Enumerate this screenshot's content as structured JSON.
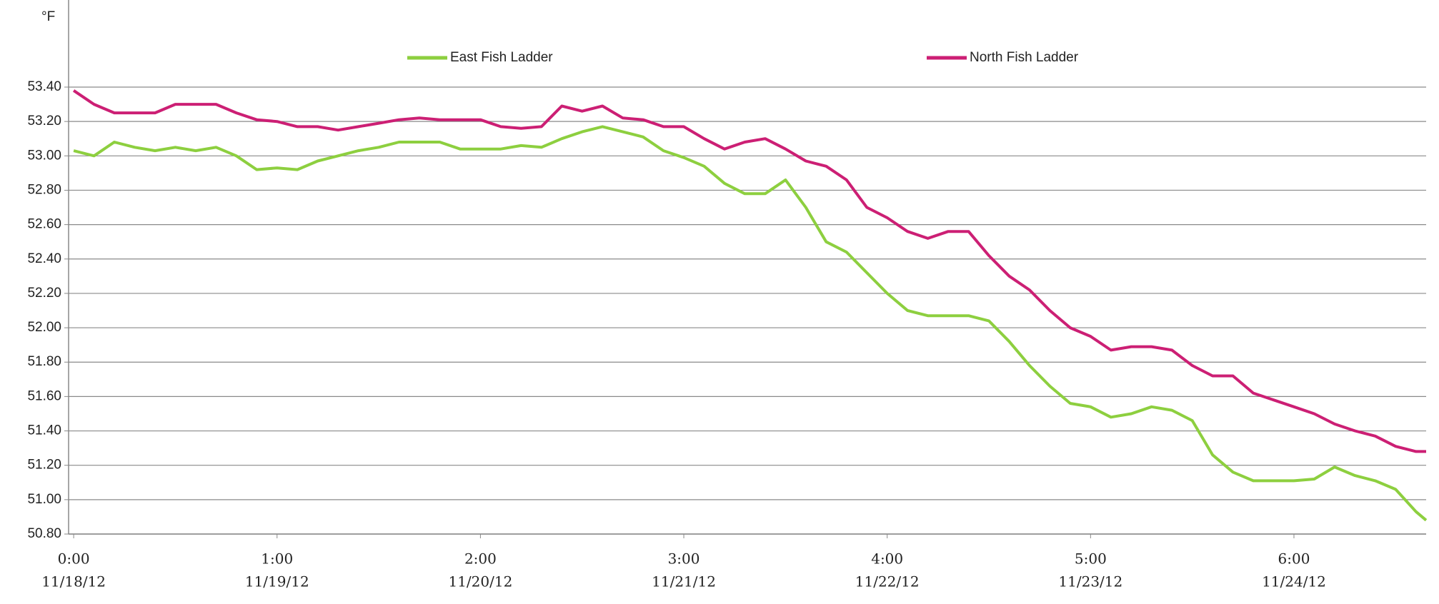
{
  "chart_data": {
    "type": "line",
    "y_unit": "°F",
    "x": [
      0,
      0.1,
      0.2,
      0.3,
      0.4,
      0.5,
      0.6,
      0.7,
      0.8,
      0.9,
      1.0,
      1.1,
      1.2,
      1.3,
      1.4,
      1.5,
      1.6,
      1.7,
      1.8,
      1.9,
      2.0,
      2.1,
      2.2,
      2.3,
      2.4,
      2.5,
      2.6,
      2.7,
      2.8,
      2.9,
      3.0,
      3.1,
      3.2,
      3.3,
      3.4,
      3.5,
      3.6,
      3.7,
      3.8,
      3.9,
      4.0,
      4.1,
      4.2,
      4.3,
      4.4,
      4.5,
      4.6,
      4.7,
      4.8,
      4.9,
      5.0,
      5.1,
      5.2,
      5.3,
      5.4,
      5.5,
      5.6,
      5.7,
      5.8,
      5.9,
      6.0,
      6.1,
      6.2,
      6.3,
      6.4,
      6.5,
      6.6,
      6.65
    ],
    "series": [
      {
        "name": "East Fish Ladder",
        "color": "#8dcf3f",
        "values": [
          53.03,
          53.0,
          53.08,
          53.05,
          53.03,
          53.05,
          53.03,
          53.05,
          53.0,
          52.92,
          52.93,
          52.92,
          52.97,
          53.0,
          53.03,
          53.05,
          53.08,
          53.08,
          53.08,
          53.04,
          53.04,
          53.04,
          53.06,
          53.05,
          53.1,
          53.14,
          53.17,
          53.14,
          53.11,
          53.03,
          52.99,
          52.94,
          52.84,
          52.78,
          52.78,
          52.86,
          52.7,
          52.5,
          52.44,
          52.32,
          52.2,
          52.1,
          52.07,
          52.07,
          52.07,
          52.04,
          51.92,
          51.78,
          51.66,
          51.56,
          51.54,
          51.48,
          51.5,
          51.54,
          51.52,
          51.46,
          51.26,
          51.16,
          51.11,
          51.11,
          51.11,
          51.12,
          51.19,
          51.14,
          51.11,
          51.06,
          50.93,
          50.88
        ]
      },
      {
        "name": "North Fish Ladder",
        "color": "#cc1f74",
        "values": [
          53.38,
          53.3,
          53.25,
          53.25,
          53.25,
          53.3,
          53.3,
          53.3,
          53.25,
          53.21,
          53.2,
          53.17,
          53.17,
          53.15,
          53.17,
          53.19,
          53.21,
          53.22,
          53.21,
          53.21,
          53.21,
          53.17,
          53.16,
          53.17,
          53.29,
          53.26,
          53.29,
          53.22,
          53.21,
          53.17,
          53.17,
          53.1,
          53.04,
          53.08,
          53.1,
          53.04,
          52.97,
          52.94,
          52.86,
          52.7,
          52.64,
          52.56,
          52.52,
          52.56,
          52.56,
          52.42,
          52.3,
          52.22,
          52.1,
          52.0,
          51.95,
          51.87,
          51.89,
          51.89,
          51.87,
          51.78,
          51.72,
          51.72,
          51.62,
          51.58,
          51.54,
          51.5,
          51.44,
          51.4,
          51.37,
          51.31,
          51.28,
          51.28
        ]
      }
    ],
    "xlim": [
      -0.025,
      6.65
    ],
    "xticks": [
      {
        "value": 0,
        "label": [
          "0:00",
          "11/18/12"
        ]
      },
      {
        "value": 1,
        "label": [
          "1:00",
          "11/19/12"
        ]
      },
      {
        "value": 2,
        "label": [
          "2:00",
          "11/20/12"
        ]
      },
      {
        "value": 3,
        "label": [
          "3:00",
          "11/21/12"
        ]
      },
      {
        "value": 4,
        "label": [
          "4:00",
          "11/22/12"
        ]
      },
      {
        "value": 5,
        "label": [
          "5:00",
          "11/23/12"
        ]
      },
      {
        "value": 6,
        "label": [
          "6:00",
          "11/24/12"
        ]
      }
    ],
    "ylim": [
      50.8,
      53.4
    ],
    "yticks": [
      {
        "value": 50.8,
        "label": "50.80"
      },
      {
        "value": 51.0,
        "label": "51.00"
      },
      {
        "value": 51.2,
        "label": "51.20"
      },
      {
        "value": 51.4,
        "label": "51.40"
      },
      {
        "value": 51.6,
        "label": "51.60"
      },
      {
        "value": 51.8,
        "label": "51.80"
      },
      {
        "value": 52.0,
        "label": "52.00"
      },
      {
        "value": 52.2,
        "label": "52.20"
      },
      {
        "value": 52.4,
        "label": "52.40"
      },
      {
        "value": 52.6,
        "label": "52.60"
      },
      {
        "value": 52.8,
        "label": "52.80"
      },
      {
        "value": 53.0,
        "label": "53.00"
      },
      {
        "value": 53.2,
        "label": "53.20"
      },
      {
        "value": 53.4,
        "label": "53.40"
      }
    ],
    "grid": true
  }
}
